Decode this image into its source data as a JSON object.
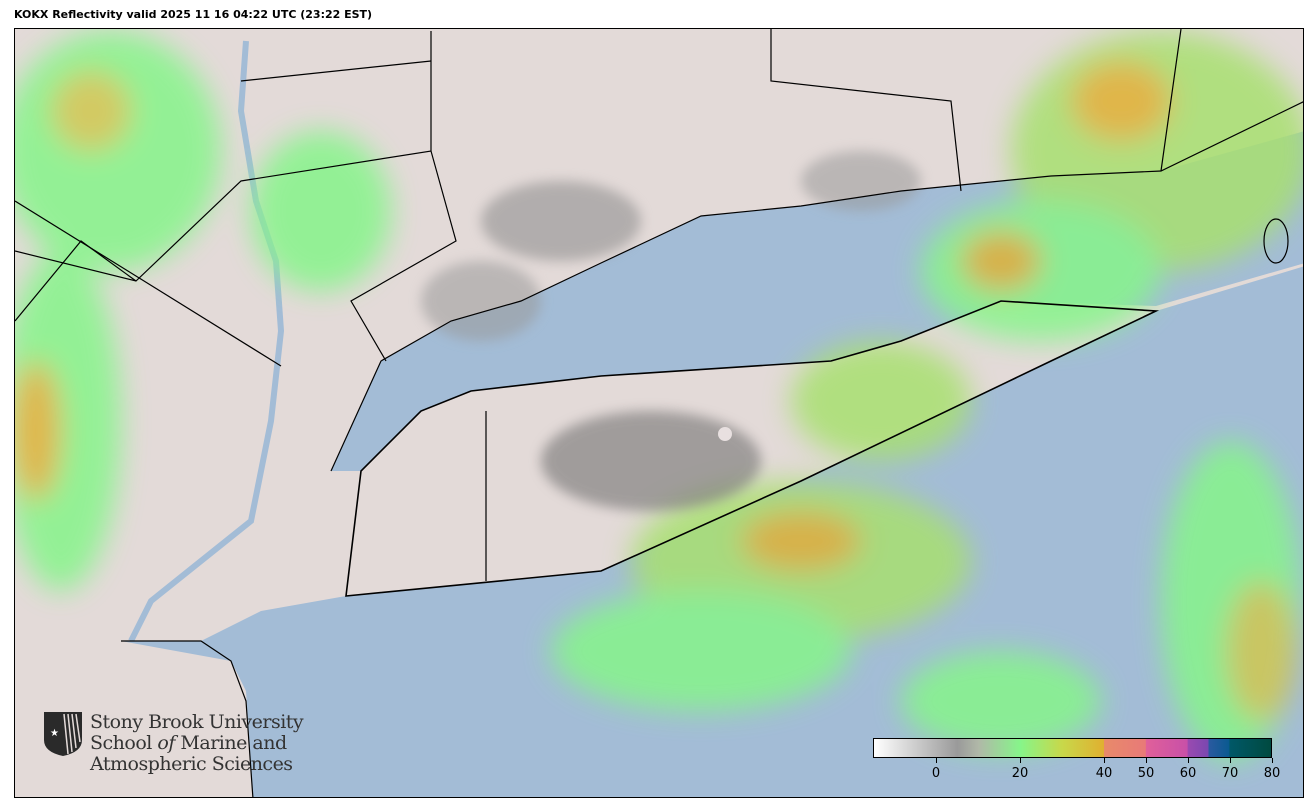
{
  "title": "KOKX Reflectivity valid 2025 11 16 04:22 UTC (23:22 EST)",
  "logo": {
    "line1": "Stony Brook University",
    "line2a": "School ",
    "line2b": "of",
    "line2c": " Marine and",
    "line3": "Atmospheric Sciences"
  },
  "colorbar": {
    "min": -15,
    "max": 80,
    "ticks": [
      {
        "label": "0",
        "value": 0
      },
      {
        "label": "20",
        "value": 20
      },
      {
        "label": "40",
        "value": 40
      },
      {
        "label": "50",
        "value": 50
      },
      {
        "label": "60",
        "value": 60
      },
      {
        "label": "70",
        "value": 70
      },
      {
        "label": "80",
        "value": 80
      }
    ],
    "stops": [
      {
        "value": -15,
        "color": "#ffffff"
      },
      {
        "value": 5,
        "color": "#9a9a9a"
      },
      {
        "value": 10,
        "color": "#b0b8a8"
      },
      {
        "value": 20,
        "color": "#86f58a"
      },
      {
        "value": 30,
        "color": "#c8d84a"
      },
      {
        "value": 40,
        "color": "#e0b030"
      },
      {
        "value": 40.1,
        "color": "#e88a6a"
      },
      {
        "value": 50,
        "color": "#e87a78"
      },
      {
        "value": 50.1,
        "color": "#e0609a"
      },
      {
        "value": 60,
        "color": "#c850a8"
      },
      {
        "value": 60.1,
        "color": "#9a4ab0"
      },
      {
        "value": 65,
        "color": "#7a48b0"
      },
      {
        "value": 65.1,
        "color": "#2a5aa0"
      },
      {
        "value": 70,
        "color": "#0a5a90"
      },
      {
        "value": 70.1,
        "color": "#005868"
      },
      {
        "value": 80,
        "color": "#004a40"
      }
    ]
  },
  "colors": {
    "land": "#e3dad8",
    "water": "#a3bcd6",
    "radar_site": "#e8e0e0"
  }
}
